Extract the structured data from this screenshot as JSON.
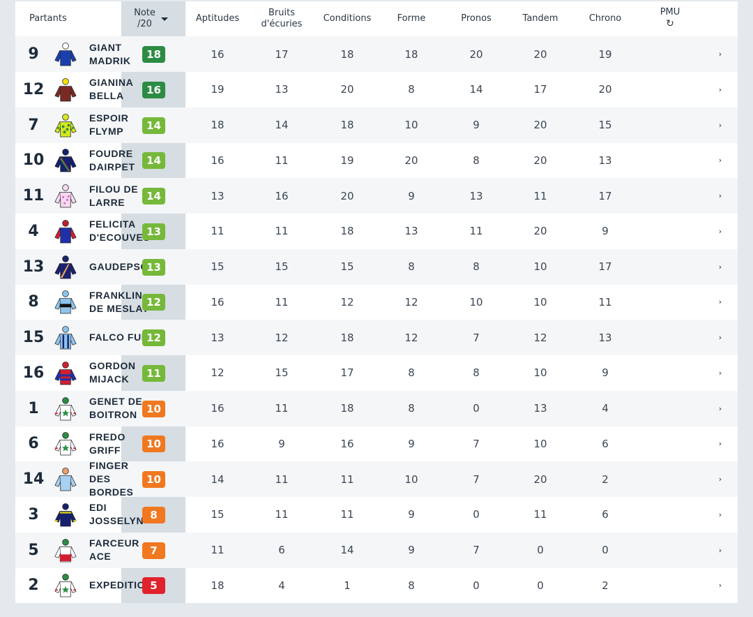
{
  "header": {
    "partants": "Partants",
    "note_line1": "Note",
    "note_line2": "/20",
    "aptitudes": "Aptitudes",
    "bruits_line1": "Bruits",
    "bruits_line2": "d'écuries",
    "conditions": "Conditions",
    "forme": "Forme",
    "pronos": "Pronos",
    "tandem": "Tandem",
    "chrono": "Chrono",
    "pmu": "PMU",
    "pmu_icon": "↻"
  },
  "colors": {
    "note_18_16": "#2c8c44",
    "note_14_11": "#76b83a",
    "note_10_7": "#f07820",
    "note_low": "#e0222c"
  },
  "rows": [
    {
      "num": "9",
      "name": "GIANT MADRIK",
      "note": "18",
      "aptitudes": "16",
      "bruits": "17",
      "conditions": "18",
      "forme": "18",
      "pronos": "20",
      "tandem": "20",
      "chrono": "19",
      "color": "#2c8c44",
      "silk": "blue-cap-white"
    },
    {
      "num": "12",
      "name": "GIANINA BELLA",
      "note": "16",
      "aptitudes": "19",
      "bruits": "13",
      "conditions": "20",
      "forme": "8",
      "pronos": "14",
      "tandem": "17",
      "chrono": "20",
      "color": "#2c8c44",
      "silk": "brown-yellow"
    },
    {
      "num": "7",
      "name": "ESPOIR FLYMP",
      "note": "14",
      "aptitudes": "18",
      "bruits": "14",
      "conditions": "18",
      "forme": "10",
      "pronos": "9",
      "tandem": "20",
      "chrono": "15",
      "color": "#76b83a",
      "silk": "yellow-green-spots"
    },
    {
      "num": "10",
      "name": "FOUDRE DAIRPET",
      "note": "14",
      "aptitudes": "16",
      "bruits": "11",
      "conditions": "19",
      "forme": "20",
      "pronos": "8",
      "tandem": "20",
      "chrono": "13",
      "color": "#76b83a",
      "silk": "navy-green-sash"
    },
    {
      "num": "11",
      "name": "FILOU DE LARRE",
      "note": "14",
      "aptitudes": "13",
      "bruits": "16",
      "conditions": "20",
      "forme": "9",
      "pronos": "13",
      "tandem": "11",
      "chrono": "17",
      "color": "#76b83a",
      "silk": "pink-white-dots"
    },
    {
      "num": "4",
      "name": "FELICITA D'ECOUVES",
      "note": "13",
      "aptitudes": "11",
      "bruits": "11",
      "conditions": "18",
      "forme": "13",
      "pronos": "11",
      "tandem": "20",
      "chrono": "9",
      "color": "#76b83a",
      "silk": "blue-red-halves"
    },
    {
      "num": "13",
      "name": "GAUDEPSO",
      "note": "13",
      "aptitudes": "15",
      "bruits": "15",
      "conditions": "15",
      "forme": "8",
      "pronos": "8",
      "tandem": "10",
      "chrono": "17",
      "color": "#76b83a",
      "silk": "navy-orange-sash"
    },
    {
      "num": "8",
      "name": "FRANKLIN DE MESLAY",
      "note": "12",
      "aptitudes": "16",
      "bruits": "11",
      "conditions": "12",
      "forme": "12",
      "pronos": "10",
      "tandem": "10",
      "chrono": "11",
      "color": "#76b83a",
      "silk": "lightblue-black-band"
    },
    {
      "num": "15",
      "name": "FALCO FUN",
      "note": "12",
      "aptitudes": "13",
      "bruits": "12",
      "conditions": "18",
      "forme": "12",
      "pronos": "7",
      "tandem": "12",
      "chrono": "13",
      "color": "#76b83a",
      "silk": "lightblue-navy-braces"
    },
    {
      "num": "16",
      "name": "GORDON MIJACK",
      "note": "11",
      "aptitudes": "12",
      "bruits": "15",
      "conditions": "17",
      "forme": "8",
      "pronos": "8",
      "tandem": "10",
      "chrono": "9",
      "color": "#76b83a",
      "silk": "red-blue-hoops"
    },
    {
      "num": "1",
      "name": "GENET DE BOITRON",
      "note": "10",
      "aptitudes": "16",
      "bruits": "11",
      "conditions": "18",
      "forme": "8",
      "pronos": "0",
      "tandem": "13",
      "chrono": "4",
      "color": "#f07820",
      "silk": "white-green-star"
    },
    {
      "num": "6",
      "name": "FREDO GRIFF",
      "note": "10",
      "aptitudes": "16",
      "bruits": "9",
      "conditions": "16",
      "forme": "9",
      "pronos": "7",
      "tandem": "10",
      "chrono": "6",
      "color": "#f07820",
      "silk": "white-green-star"
    },
    {
      "num": "14",
      "name": "FINGER DES BORDES",
      "note": "10",
      "aptitudes": "14",
      "bruits": "11",
      "conditions": "11",
      "forme": "10",
      "pronos": "7",
      "tandem": "20",
      "chrono": "2",
      "color": "#f07820",
      "silk": "lightblue"
    },
    {
      "num": "3",
      "name": "EDI JOSSELYN",
      "note": "8",
      "aptitudes": "15",
      "bruits": "11",
      "conditions": "11",
      "forme": "9",
      "pronos": "0",
      "tandem": "11",
      "chrono": "6",
      "color": "#f07820",
      "silk": "navy-yellow"
    },
    {
      "num": "5",
      "name": "FARCEUR ACE",
      "note": "7",
      "aptitudes": "11",
      "bruits": "6",
      "conditions": "14",
      "forme": "9",
      "pronos": "7",
      "tandem": "0",
      "chrono": "0",
      "color": "#f07820",
      "silk": "white-red"
    },
    {
      "num": "2",
      "name": "EXPEDITION",
      "note": "5",
      "aptitudes": "18",
      "bruits": "4",
      "conditions": "1",
      "forme": "8",
      "pronos": "0",
      "tandem": "0",
      "chrono": "2",
      "color": "#e0222c",
      "silk": "white-green-star"
    }
  ]
}
